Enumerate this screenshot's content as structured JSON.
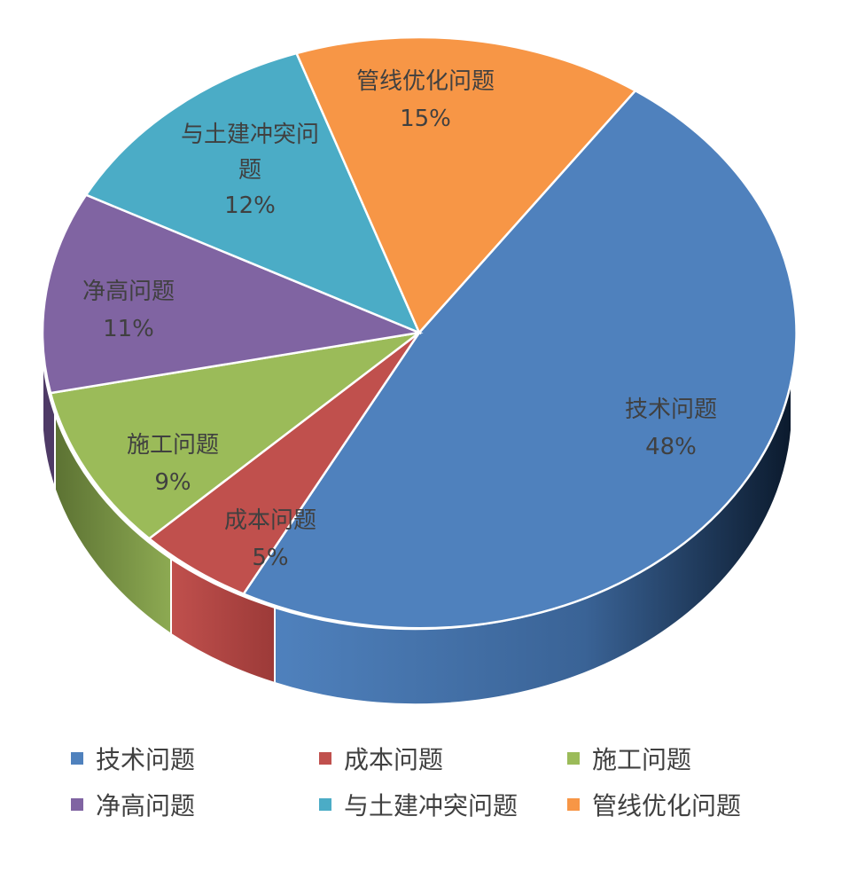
{
  "chart_data": {
    "type": "pie",
    "title": "",
    "slices": [
      {
        "label": "技术问题",
        "value": 48,
        "value_label": "48%",
        "color": "#4F81BD"
      },
      {
        "label": "成本问题",
        "value": 5,
        "value_label": "5%",
        "color": "#C0504D"
      },
      {
        "label": "施工问题",
        "value": 9,
        "value_label": "9%",
        "color": "#9BBB59"
      },
      {
        "label": "净高问题",
        "value": 11,
        "value_label": "11%",
        "color": "#8064A2"
      },
      {
        "label": "与土建冲突问题",
        "value": 12,
        "value_label": "12%",
        "color": "#4BACC6"
      },
      {
        "label": "管线优化问题",
        "value": 15,
        "value_label": "15%",
        "color": "#F79646"
      }
    ],
    "legend_position": "bottom",
    "style": "3D pie"
  }
}
